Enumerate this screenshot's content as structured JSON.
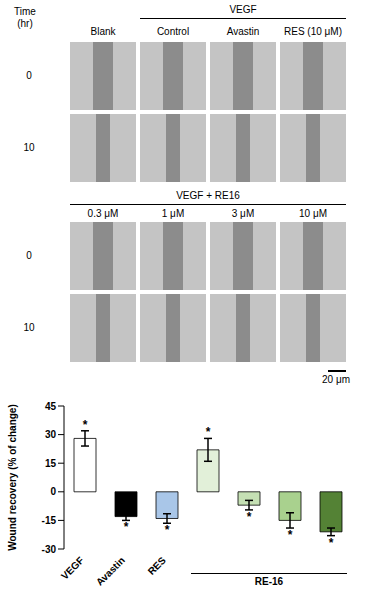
{
  "figure": {
    "top_panel": {
      "time_label": "Time (hr)",
      "columns": [
        "Blank"
      ],
      "group": {
        "label": "VEGF",
        "columns": [
          "Control",
          "Avastin",
          "RES (10 μM)"
        ]
      },
      "rows": [
        "0",
        "10"
      ]
    },
    "bottom_panel": {
      "group": {
        "label": "VEGF + RE16",
        "columns": [
          "0.3 μM",
          "1 μM",
          "3 μM",
          "10 μM"
        ]
      },
      "rows": [
        "0",
        "10"
      ]
    },
    "scale_bar": "20 μm"
  },
  "chart_data": {
    "type": "bar",
    "categories": [
      "VEGF",
      "Avastin",
      "RES",
      null,
      null,
      null,
      null
    ],
    "values": [
      28,
      -13,
      -14,
      22,
      -7,
      -15,
      -21
    ],
    "errors": [
      4,
      2,
      2.5,
      6,
      2.5,
      4,
      2
    ],
    "colors": [
      "#ffffff",
      "#000000",
      "#a9c6e8",
      "#e2f0d9",
      "#c5e0b4",
      "#a9d18e",
      "#548235"
    ],
    "significance": [
      "*",
      "*",
      "*",
      "*",
      "*",
      "*",
      "*"
    ],
    "annotations": [
      {
        "text": "RE-16",
        "from": 3,
        "to": 6
      }
    ],
    "y_label": "Wound recovery (% of change)",
    "ylim": [
      -30,
      45
    ],
    "yticks": [
      -30,
      -15,
      0,
      15,
      30,
      45
    ],
    "grid": false
  }
}
